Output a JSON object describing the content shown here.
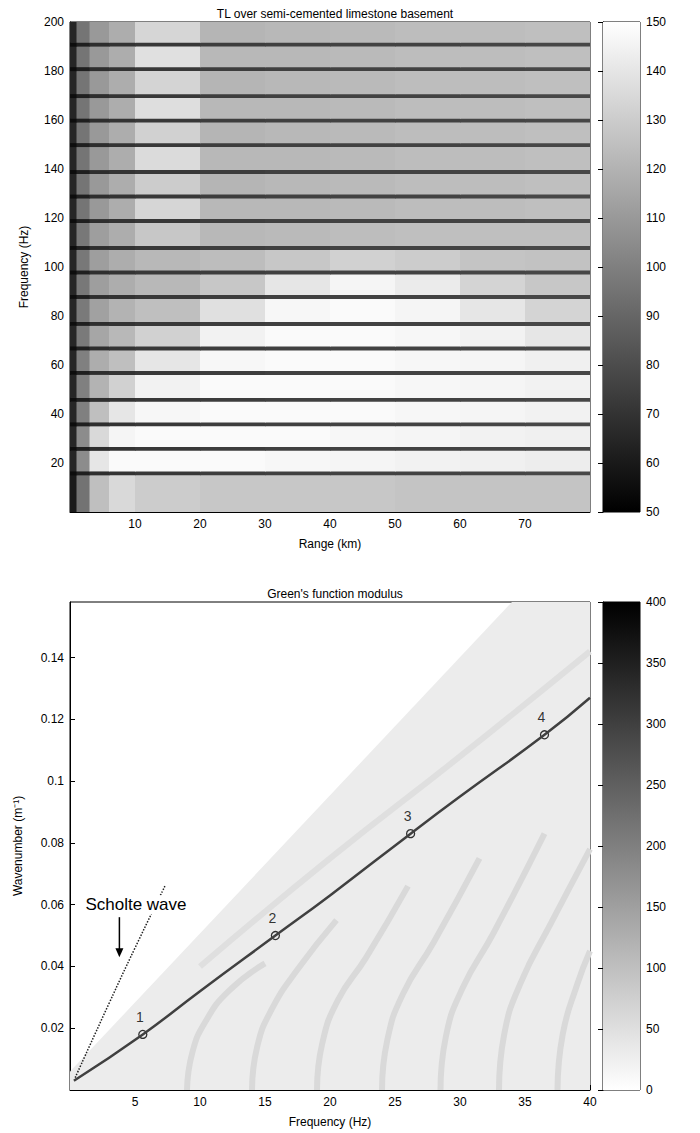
{
  "chart_data": [
    {
      "type": "heatmap",
      "title": "TL over semi-cemented limestone basement",
      "xlabel": "Range (km)",
      "ylabel": "Frequency (Hz)",
      "xlim": [
        0,
        80
      ],
      "xticks": [
        10,
        20,
        30,
        40,
        50,
        60,
        70
      ],
      "ylim": [
        0,
        200
      ],
      "yticks": [
        20,
        40,
        60,
        80,
        100,
        120,
        140,
        160,
        180,
        200
      ],
      "x_edges": [
        0,
        1,
        3,
        6,
        10,
        20,
        30,
        40,
        50,
        60,
        70,
        80
      ],
      "y_edges": [
        0,
        15.2,
        16.8,
        25.2,
        26.8,
        35.2,
        36.8,
        45.2,
        46.8,
        56.2,
        57.8,
        66.2,
        67.8,
        76.2,
        77.8,
        87.2,
        88.8,
        97.2,
        98.8,
        107.2,
        108.8,
        118.2,
        119.8,
        128.2,
        129.8,
        138.2,
        139.8,
        149.2,
        150.8,
        159.2,
        160.8,
        169.2,
        170.8,
        180.2,
        181.8,
        190.2,
        191.8,
        200
      ],
      "cells": [
        [
          60,
          95,
          125,
          135,
          130,
          128,
          128,
          128,
          127,
          127,
          127
        ],
        [
          55,
          62,
          68,
          70,
          72,
          74,
          75,
          76,
          76,
          77,
          78
        ],
        [
          65,
          105,
          140,
          148,
          148,
          148,
          147,
          146,
          145,
          144,
          143
        ],
        [
          55,
          62,
          68,
          70,
          72,
          74,
          75,
          76,
          76,
          77,
          78
        ],
        [
          65,
          105,
          135,
          146,
          148,
          148,
          148,
          147,
          146,
          145,
          144
        ],
        [
          55,
          62,
          68,
          70,
          72,
          74,
          75,
          76,
          76,
          77,
          78
        ],
        [
          65,
          100,
          125,
          140,
          147,
          148,
          148,
          148,
          147,
          146,
          145
        ],
        [
          55,
          62,
          68,
          70,
          72,
          74,
          75,
          76,
          76,
          77,
          78
        ],
        [
          65,
          100,
          120,
          132,
          145,
          148,
          148,
          148,
          147,
          146,
          145
        ],
        [
          55,
          62,
          68,
          70,
          72,
          74,
          75,
          76,
          76,
          77,
          78
        ],
        [
          65,
          100,
          118,
          125,
          140,
          147,
          148,
          148,
          147,
          146,
          144
        ],
        [
          55,
          62,
          68,
          70,
          72,
          74,
          75,
          76,
          76,
          77,
          78
        ],
        [
          65,
          98,
          115,
          122,
          132,
          145,
          148,
          148,
          147,
          145,
          140
        ],
        [
          55,
          62,
          68,
          70,
          72,
          74,
          75,
          76,
          76,
          77,
          78
        ],
        [
          65,
          98,
          113,
          120,
          125,
          138,
          147,
          148,
          146,
          140,
          133
        ],
        [
          55,
          62,
          68,
          70,
          72,
          74,
          75,
          76,
          76,
          77,
          78
        ],
        [
          65,
          97,
          112,
          118,
          122,
          128,
          140,
          146,
          142,
          133,
          128
        ],
        [
          55,
          62,
          68,
          70,
          72,
          74,
          75,
          76,
          76,
          77,
          78
        ],
        [
          65,
          97,
          112,
          118,
          122,
          124,
          128,
          132,
          130,
          127,
          126
        ],
        [
          55,
          62,
          68,
          70,
          72,
          74,
          75,
          76,
          76,
          77,
          78
        ],
        [
          65,
          97,
          112,
          118,
          128,
          122,
          123,
          124,
          125,
          125,
          125
        ],
        [
          55,
          62,
          68,
          70,
          72,
          74,
          75,
          76,
          76,
          77,
          78
        ],
        [
          65,
          96,
          110,
          118,
          134,
          122,
          122,
          123,
          124,
          124,
          125
        ],
        [
          55,
          62,
          68,
          70,
          72,
          74,
          75,
          76,
          76,
          77,
          78
        ],
        [
          65,
          96,
          110,
          118,
          130,
          121,
          122,
          123,
          124,
          124,
          125
        ],
        [
          55,
          62,
          68,
          70,
          72,
          74,
          75,
          76,
          76,
          77,
          78
        ],
        [
          65,
          96,
          110,
          118,
          136,
          122,
          122,
          123,
          124,
          124,
          125
        ],
        [
          55,
          62,
          68,
          70,
          72,
          74,
          75,
          76,
          76,
          77,
          78
        ],
        [
          65,
          96,
          110,
          118,
          132,
          121,
          122,
          123,
          124,
          124,
          125
        ],
        [
          55,
          62,
          68,
          70,
          72,
          74,
          75,
          76,
          76,
          77,
          78
        ],
        [
          65,
          96,
          110,
          118,
          137,
          122,
          122,
          123,
          124,
          124,
          125
        ],
        [
          55,
          62,
          68,
          70,
          72,
          74,
          75,
          76,
          76,
          77,
          78
        ],
        [
          65,
          96,
          110,
          118,
          133,
          121,
          122,
          123,
          124,
          124,
          125
        ],
        [
          55,
          62,
          68,
          70,
          72,
          74,
          75,
          76,
          76,
          77,
          78
        ],
        [
          65,
          96,
          110,
          118,
          138,
          122,
          122,
          123,
          124,
          124,
          125
        ],
        [
          55,
          62,
          68,
          70,
          72,
          74,
          75,
          76,
          76,
          77,
          78
        ],
        [
          65,
          96,
          110,
          118,
          134,
          121,
          122,
          123,
          124,
          124,
          125
        ]
      ],
      "colorbar": {
        "lim": [
          50,
          150
        ],
        "ticks": [
          50,
          60,
          70,
          80,
          90,
          100,
          110,
          120,
          130,
          140,
          150
        ],
        "colors": [
          "#000000",
          "#ffffff"
        ]
      }
    },
    {
      "type": "heatmap",
      "title": "Green's function modulus",
      "xlabel": "Frequency (Hz)",
      "ylabel": "Wavenumber (m⁻¹)",
      "xlim": [
        0,
        40
      ],
      "xticks": [
        5,
        10,
        15,
        20,
        25,
        30,
        35,
        40
      ],
      "ylim": [
        0,
        0.158
      ],
      "yticks": [
        0.02,
        0.04,
        0.06,
        0.08,
        0.1,
        0.12,
        0.14
      ],
      "series": [
        {
          "type": "area",
          "level": 30,
          "points": [
            [
              0,
              0
            ],
            [
              0,
              0.006
            ],
            [
              34,
              0.158
            ],
            [
              40,
              0.158
            ],
            [
              40,
              0
            ],
            [
              0,
              0
            ]
          ]
        },
        {
          "type": "line",
          "level": 60,
          "line_style": "solid",
          "points": [
            [
              9,
              0
            ],
            [
              9.4,
              0.012
            ],
            [
              10.4,
              0.022
            ],
            [
              12.2,
              0.032
            ],
            [
              15,
              0.041
            ]
          ]
        },
        {
          "type": "line",
          "level": 60,
          "line_style": "solid",
          "points": [
            [
              14,
              0
            ],
            [
              14.4,
              0.014
            ],
            [
              15.5,
              0.026
            ],
            [
              17.5,
              0.039
            ],
            [
              20.5,
              0.055
            ]
          ]
        },
        {
          "type": "line",
          "level": 60,
          "line_style": "solid",
          "points": [
            [
              19,
              0
            ],
            [
              19.4,
              0.015
            ],
            [
              20.6,
              0.029
            ],
            [
              22.8,
              0.043
            ],
            [
              26,
              0.066
            ]
          ]
        },
        {
          "type": "line",
          "level": 60,
          "line_style": "solid",
          "points": [
            [
              24,
              0
            ],
            [
              24.4,
              0.016
            ],
            [
              25.6,
              0.031
            ],
            [
              28,
              0.048
            ],
            [
              31.5,
              0.075
            ]
          ]
        },
        {
          "type": "line",
          "level": 60,
          "line_style": "solid",
          "points": [
            [
              28.5,
              0
            ],
            [
              28.9,
              0.017
            ],
            [
              30.2,
              0.033
            ],
            [
              32.6,
              0.051
            ],
            [
              36.5,
              0.083
            ]
          ]
        },
        {
          "type": "line",
          "level": 60,
          "line_style": "solid",
          "points": [
            [
              33,
              0
            ],
            [
              33.4,
              0.018
            ],
            [
              34.7,
              0.035
            ],
            [
              37,
              0.054
            ],
            [
              40,
              0.078
            ]
          ]
        },
        {
          "type": "line",
          "level": 60,
          "line_style": "solid",
          "points": [
            [
              37.5,
              0
            ],
            [
              37.9,
              0.018
            ],
            [
              39,
              0.034
            ],
            [
              40,
              0.045
            ]
          ]
        },
        {
          "type": "line",
          "level": 50,
          "line_style": "solid",
          "points": [
            [
              10,
              0.04
            ],
            [
              20,
              0.075
            ],
            [
              30,
              0.108
            ],
            [
              40,
              0.142
            ]
          ]
        },
        {
          "type": "line",
          "level": 300,
          "line_style": "solid",
          "points": [
            [
              0.3,
              0.003
            ],
            [
              5.6,
              0.018
            ],
            [
              10,
              0.032
            ],
            [
              15.8,
              0.05
            ],
            [
              20,
              0.063
            ],
            [
              26.2,
              0.083
            ],
            [
              30,
              0.095
            ],
            [
              36.5,
              0.115
            ],
            [
              40,
              0.127
            ]
          ]
        },
        {
          "type": "line",
          "level": 350,
          "line_style": "dotted",
          "points": [
            [
              0.4,
              0.004
            ],
            [
              3,
              0.028
            ],
            [
              5,
              0.046
            ],
            [
              7.3,
              0.066
            ]
          ]
        }
      ],
      "markers": {
        "marker": "circle",
        "labels": [
          "1",
          "2",
          "3",
          "4"
        ],
        "x": [
          5.6,
          15.8,
          26.2,
          36.5
        ],
        "y": [
          0.018,
          0.05,
          0.083,
          0.115
        ]
      },
      "annotations": [
        {
          "text": "Scholte wave",
          "x": 3.8,
          "y": 0.043
        }
      ],
      "colorbar": {
        "lim": [
          0,
          400
        ],
        "ticks": [
          0,
          50,
          100,
          150,
          200,
          250,
          300,
          350,
          400
        ],
        "colors": [
          "#ffffff",
          "#000000"
        ]
      }
    }
  ]
}
